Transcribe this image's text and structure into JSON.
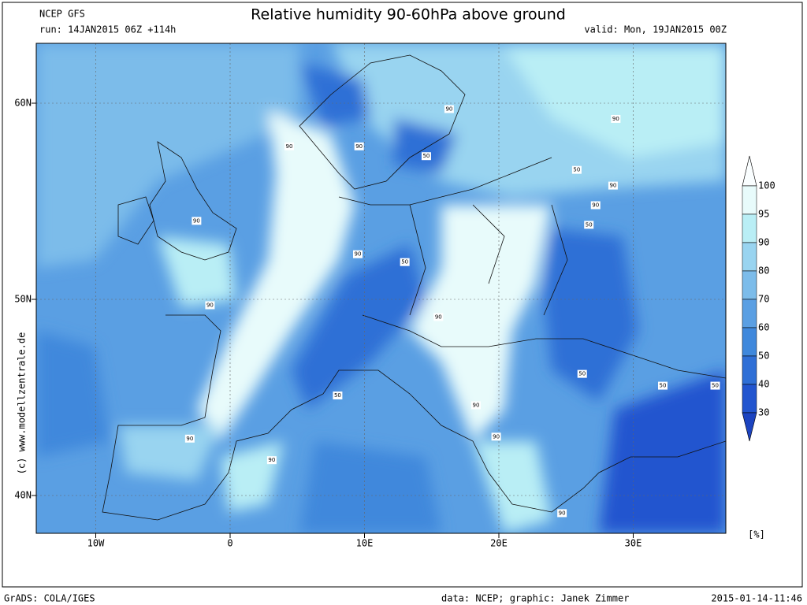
{
  "header": {
    "model": "NCEP GFS",
    "run": "run: 14JAN2015 06Z +114h",
    "title": "Relative humidity 90-60hPa above ground",
    "valid": "valid: Mon, 19JAN2015 00Z"
  },
  "map": {
    "lat_ticks": [
      {
        "value": 60,
        "label": "60N"
      },
      {
        "value": 50,
        "label": "50N"
      },
      {
        "value": 40,
        "label": "40N"
      }
    ],
    "lon_ticks": [
      {
        "value": -10,
        "label": "10W"
      },
      {
        "value": 0,
        "label": "0"
      },
      {
        "value": 10,
        "label": "10E"
      },
      {
        "value": 20,
        "label": "20E"
      },
      {
        "value": 30,
        "label": "30E"
      }
    ],
    "contour_labels": [
      {
        "text": "90",
        "lon": 16.3,
        "lat": 59.7
      },
      {
        "text": "90",
        "lon": 4.4,
        "lat": 57.8
      },
      {
        "text": "90",
        "lon": 9.6,
        "lat": 57.8
      },
      {
        "text": "50",
        "lon": 14.6,
        "lat": 57.3
      },
      {
        "text": "90",
        "lon": 28.7,
        "lat": 59.2
      },
      {
        "text": "50",
        "lon": 25.8,
        "lat": 56.6
      },
      {
        "text": "90",
        "lon": 28.5,
        "lat": 55.8
      },
      {
        "text": "90",
        "lon": 27.2,
        "lat": 54.8
      },
      {
        "text": "50",
        "lon": 26.7,
        "lat": 53.8
      },
      {
        "text": "90",
        "lon": -2.5,
        "lat": 54.0
      },
      {
        "text": "90",
        "lon": 9.5,
        "lat": 52.3
      },
      {
        "text": "50",
        "lon": 13.0,
        "lat": 51.9
      },
      {
        "text": "90",
        "lon": -1.5,
        "lat": 49.7
      },
      {
        "text": "90",
        "lon": 15.5,
        "lat": 49.1
      },
      {
        "text": "50",
        "lon": 8.0,
        "lat": 45.1
      },
      {
        "text": "90",
        "lon": 18.3,
        "lat": 44.6
      },
      {
        "text": "90",
        "lon": 19.8,
        "lat": 43.0
      },
      {
        "text": "50",
        "lon": 26.2,
        "lat": 46.2
      },
      {
        "text": "50",
        "lon": 32.2,
        "lat": 45.6
      },
      {
        "text": "50",
        "lon": 36.1,
        "lat": 45.6
      },
      {
        "text": "90",
        "lon": -3.0,
        "lat": 42.9
      },
      {
        "text": "90",
        "lon": 3.1,
        "lat": 41.8
      },
      {
        "text": "90",
        "lon": 24.7,
        "lat": 39.1
      }
    ]
  },
  "colorbar": {
    "levels": [
      100,
      95,
      90,
      80,
      70,
      60,
      50,
      40,
      30
    ],
    "unit": "[%]"
  },
  "side": "(c) www.modellzentrale.de",
  "footer": {
    "left": "GrADS: COLA/IGES",
    "center": "data: NCEP; graphic: Janek Zimmer",
    "right": "2015-01-14-11:46"
  }
}
